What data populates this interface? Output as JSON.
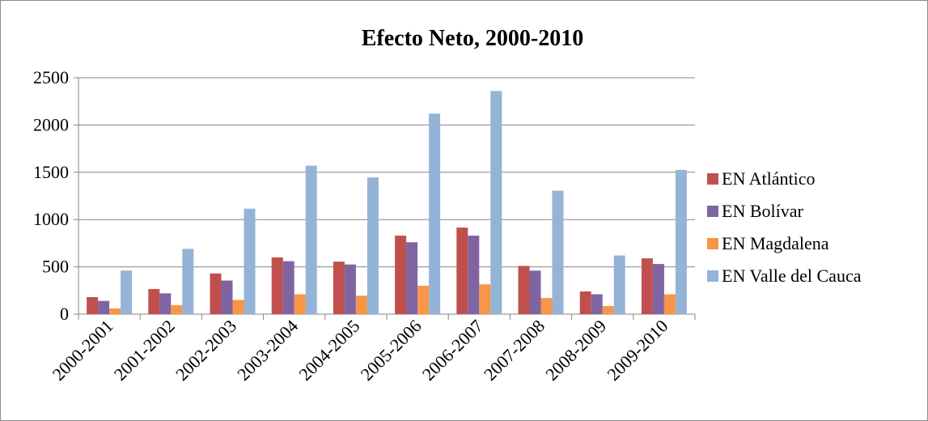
{
  "chart_data": {
    "type": "bar",
    "title": "Efecto Neto, 2000-2010",
    "xlabel": "",
    "ylabel": "",
    "ylim": [
      0,
      2500
    ],
    "yticks": [
      0,
      500,
      1000,
      1500,
      2000,
      2500
    ],
    "grid": true,
    "legend_position": "right",
    "categories": [
      "2000-2001",
      "2001-2002",
      "2002-2003",
      "2003-2004",
      "2004-2005",
      "2005-2006",
      "2006-2007",
      "2007-2008",
      "2008-2009",
      "2009-2010"
    ],
    "series": [
      {
        "name": "EN Atlántico",
        "color": "#c0504d",
        "values": [
          180,
          265,
          430,
          600,
          555,
          830,
          915,
          510,
          240,
          590
        ]
      },
      {
        "name": "EN Bolívar",
        "color": "#8064a2",
        "values": [
          140,
          220,
          355,
          560,
          525,
          760,
          830,
          460,
          210,
          530
        ]
      },
      {
        "name": "EN Magdalena",
        "color": "#f79646",
        "values": [
          60,
          95,
          150,
          210,
          195,
          300,
          315,
          170,
          85,
          210
        ]
      },
      {
        "name": "EN Valle del Cauca",
        "color": "#95b3d7",
        "values": [
          460,
          690,
          1115,
          1570,
          1445,
          2120,
          2360,
          1305,
          620,
          1525
        ]
      }
    ]
  }
}
